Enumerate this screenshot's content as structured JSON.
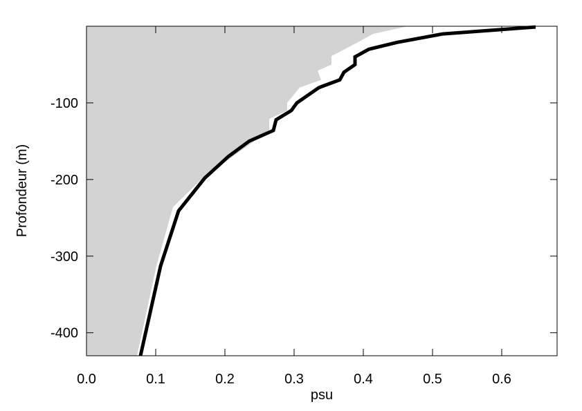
{
  "chart_data": {
    "type": "line",
    "xlabel": "psu",
    "ylabel": "Profondeur (m)",
    "xlim": [
      0,
      0.68
    ],
    "ylim": [
      -430,
      0
    ],
    "xticks": [
      {
        "value": 0,
        "label": "0.0"
      },
      0.1,
      0.2,
      0.3,
      0.4,
      0.5,
      0.6
    ],
    "yticks": [
      -400,
      -300,
      -200,
      -100
    ],
    "series": [
      {
        "kind": "area",
        "color": "#d3d3d3",
        "x": [
          0.464,
          0.414,
          0.394,
          0.354,
          0.354,
          0.334,
          0.339,
          0.308,
          0.29,
          0.29,
          0.264,
          0.264,
          0.168,
          0.125,
          0.101,
          0.073
        ],
        "values": [
          0,
          -10,
          -20,
          -39,
          -50,
          -58,
          -70,
          -80,
          -100,
          -110,
          -121,
          -136,
          -198,
          -236,
          -313,
          -430
        ]
      },
      {
        "kind": "line",
        "color": "#000000",
        "x": [
          0.649,
          0.515,
          0.449,
          0.408,
          0.388,
          0.388,
          0.372,
          0.366,
          0.336,
          0.304,
          0.296,
          0.274,
          0.27,
          0.235,
          0.205,
          0.171,
          0.133,
          0.107,
          0.078
        ],
        "values": [
          -1,
          -10,
          -21,
          -30,
          -40,
          -50,
          -60,
          -70,
          -80,
          -100,
          -110,
          -122,
          -136,
          -150,
          -170,
          -198,
          -241,
          -313,
          -430
        ]
      }
    ]
  }
}
